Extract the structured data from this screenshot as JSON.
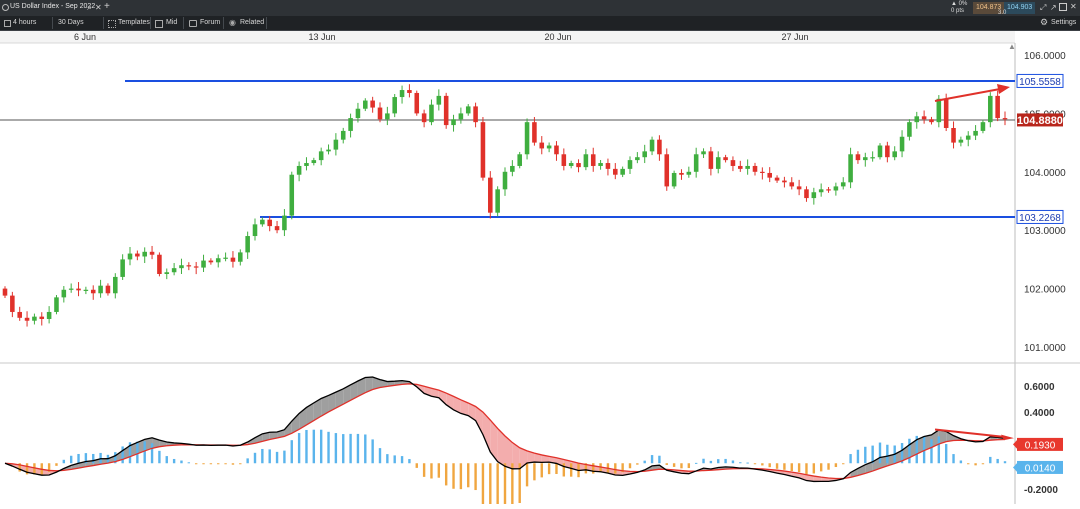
{
  "window": {
    "tab_title": "US Dollar Index - Sep 2022",
    "change_pct": "▲ 0%",
    "change_pts": "0 pts",
    "bid": "104.873",
    "ask": "104.903",
    "spread": "3.0"
  },
  "toolbar": {
    "timeframe": "4 hours",
    "range": "30 Days",
    "templates": "Templates",
    "price_type": "Mid",
    "forum": "Forum",
    "related": "Related",
    "settings": "Settings"
  },
  "colors": {
    "bull": "#3fae3f",
    "bear": "#e0312a",
    "support_line": "#1a4fe0",
    "macd_line": "#000000",
    "signal_line": "#e0312a",
    "hist_pos": "#5ab4ec",
    "hist_neg": "#f0a640",
    "current_price_tag": "#b8261c",
    "hist_tag": "#5ab4ec"
  },
  "chart_data": [
    {
      "type": "candlestick",
      "x_tick_labels": [
        "6 Jun",
        "13 Jun",
        "20 Jun",
        "27 Jun"
      ],
      "y_tick_labels": [
        "106.0000",
        "105.0000",
        "104.0000",
        "103.0000",
        "102.0000",
        "101.0000"
      ],
      "ylim": [
        100.8,
        106.3
      ],
      "horizontal_lines": [
        {
          "label": "105.5558",
          "value": 105.5558
        },
        {
          "label": "103.2268",
          "value": 103.2268
        }
      ],
      "current_price": {
        "label": "104.8880",
        "value": 104.888
      },
      "candles": [
        [
          102.0,
          101.88
        ],
        [
          101.88,
          101.6
        ],
        [
          101.6,
          101.5
        ],
        [
          101.5,
          101.45
        ],
        [
          101.45,
          101.52
        ],
        [
          101.52,
          101.48
        ],
        [
          101.48,
          101.6
        ],
        [
          101.6,
          101.85
        ],
        [
          101.85,
          101.98
        ],
        [
          101.98,
          102.0
        ],
        [
          102.0,
          101.97
        ],
        [
          101.97,
          101.98
        ],
        [
          101.98,
          101.92
        ],
        [
          101.92,
          102.05
        ],
        [
          102.05,
          101.92
        ],
        [
          101.92,
          102.2
        ],
        [
          102.2,
          102.5
        ],
        [
          102.5,
          102.6
        ],
        [
          102.6,
          102.55
        ],
        [
          102.55,
          102.63
        ],
        [
          102.63,
          102.58
        ],
        [
          102.58,
          102.25
        ],
        [
          102.25,
          102.28
        ],
        [
          102.28,
          102.35
        ],
        [
          102.35,
          102.4
        ],
        [
          102.4,
          102.38
        ],
        [
          102.38,
          102.36
        ],
        [
          102.36,
          102.48
        ],
        [
          102.48,
          102.45
        ],
        [
          102.45,
          102.52
        ],
        [
          102.52,
          102.53
        ],
        [
          102.53,
          102.46
        ],
        [
          102.46,
          102.62
        ],
        [
          102.62,
          102.9
        ],
        [
          102.9,
          103.1
        ],
        [
          103.1,
          103.18
        ],
        [
          103.18,
          103.07
        ],
        [
          103.07,
          103.0
        ],
        [
          103.0,
          103.25
        ],
        [
          103.25,
          103.95
        ],
        [
          103.95,
          104.1
        ],
        [
          104.1,
          104.15
        ],
        [
          104.15,
          104.2
        ],
        [
          104.2,
          104.35
        ],
        [
          104.35,
          104.38
        ],
        [
          104.38,
          104.55
        ],
        [
          104.55,
          104.7
        ],
        [
          104.7,
          104.92
        ],
        [
          104.92,
          105.08
        ],
        [
          105.08,
          105.22
        ],
        [
          105.22,
          105.1
        ],
        [
          105.1,
          104.9
        ],
        [
          104.9,
          105.0
        ],
        [
          105.0,
          105.28
        ],
        [
          105.28,
          105.4
        ],
        [
          105.4,
          105.35
        ],
        [
          105.35,
          105.0
        ],
        [
          105.0,
          104.85
        ],
        [
          104.85,
          105.15
        ],
        [
          105.15,
          105.3
        ],
        [
          105.3,
          104.8
        ],
        [
          104.8,
          104.9
        ],
        [
          104.9,
          105.0
        ],
        [
          105.0,
          105.12
        ],
        [
          105.12,
          104.85
        ],
        [
          104.85,
          103.9
        ],
        [
          103.9,
          103.3
        ],
        [
          103.3,
          103.7
        ],
        [
          103.7,
          104.0
        ],
        [
          104.0,
          104.1
        ],
        [
          104.1,
          104.3
        ],
        [
          104.3,
          104.85
        ],
        [
          104.85,
          104.5
        ],
        [
          104.5,
          104.4
        ],
        [
          104.4,
          104.45
        ],
        [
          104.45,
          104.3
        ],
        [
          104.3,
          104.1
        ],
        [
          104.1,
          104.15
        ],
        [
          104.15,
          104.08
        ],
        [
          104.08,
          104.3
        ],
        [
          104.3,
          104.1
        ],
        [
          104.1,
          104.15
        ],
        [
          104.15,
          104.05
        ],
        [
          104.05,
          103.95
        ],
        [
          103.95,
          104.05
        ],
        [
          104.05,
          104.2
        ],
        [
          104.2,
          104.25
        ],
        [
          104.25,
          104.35
        ],
        [
          104.35,
          104.55
        ],
        [
          104.55,
          104.3
        ],
        [
          104.3,
          103.75
        ],
        [
          103.75,
          103.98
        ],
        [
          103.98,
          103.95
        ],
        [
          103.95,
          104.0
        ],
        [
          104.0,
          104.3
        ],
        [
          104.3,
          104.35
        ],
        [
          104.35,
          104.05
        ],
        [
          104.05,
          104.25
        ],
        [
          104.25,
          104.2
        ],
        [
          104.2,
          104.1
        ],
        [
          104.1,
          104.05
        ],
        [
          104.05,
          104.1
        ],
        [
          104.1,
          104.0
        ],
        [
          104.0,
          103.98
        ],
        [
          103.98,
          103.9
        ],
        [
          103.9,
          103.85
        ],
        [
          103.85,
          103.82
        ],
        [
          103.82,
          103.75
        ],
        [
          103.75,
          103.7
        ],
        [
          103.7,
          103.55
        ],
        [
          103.55,
          103.65
        ],
        [
          103.65,
          103.7
        ],
        [
          103.7,
          103.68
        ],
        [
          103.68,
          103.75
        ],
        [
          103.75,
          103.82
        ],
        [
          103.82,
          104.3
        ],
        [
          104.3,
          104.2
        ],
        [
          104.2,
          104.25
        ],
        [
          104.25,
          104.25
        ],
        [
          104.25,
          104.45
        ],
        [
          104.45,
          104.25
        ],
        [
          104.25,
          104.35
        ],
        [
          104.35,
          104.6
        ],
        [
          104.6,
          104.85
        ],
        [
          104.85,
          104.95
        ],
        [
          104.95,
          104.9
        ],
        [
          104.9,
          104.85
        ],
        [
          104.85,
          105.25
        ],
        [
          105.25,
          104.75
        ],
        [
          104.75,
          104.5
        ],
        [
          104.5,
          104.55
        ],
        [
          104.55,
          104.62
        ],
        [
          104.62,
          104.7
        ],
        [
          104.7,
          104.85
        ],
        [
          104.85,
          105.3
        ],
        [
          105.3,
          104.92
        ],
        [
          104.92,
          104.9
        ]
      ],
      "annotation": "red trendline arrow over the most recent highs"
    },
    {
      "type": "line",
      "series_kind": "MACD",
      "y_tick_labels": [
        "0.6000",
        "0.4000",
        "-0.2000"
      ],
      "ylim": [
        -0.26,
        0.7
      ],
      "macd_current": {
        "label": "0.1930",
        "value": 0.193
      },
      "histogram_current": {
        "label": "0.0140",
        "value": 0.014
      },
      "annotation": "red divergence arrow over the most recent MACD peaks"
    }
  ]
}
